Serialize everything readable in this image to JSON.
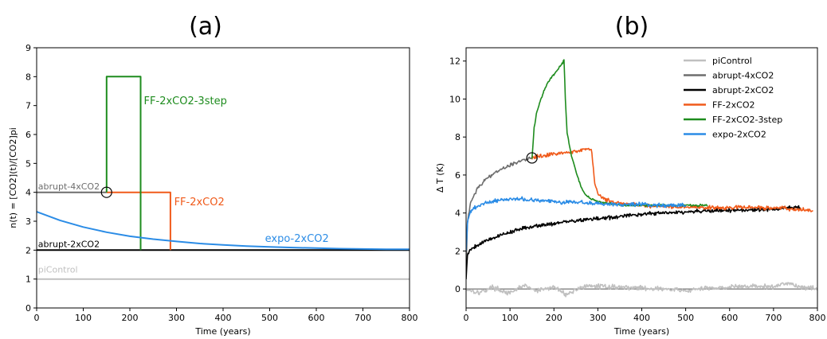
{
  "chart_data": [
    {
      "type": "line",
      "panel_label": "(a)",
      "xlabel": "Time (years)",
      "ylabel": "n(t) = [CO2](t)/[CO2]pi",
      "xlim": [
        0,
        800
      ],
      "ylim": [
        0,
        9
      ],
      "xticks": [
        "0",
        "100",
        "200",
        "300",
        "400",
        "500",
        "600",
        "700",
        "800"
      ],
      "yticks": [
        "0",
        "1",
        "2",
        "3",
        "4",
        "5",
        "6",
        "7",
        "8",
        "9"
      ],
      "grid": false,
      "legend": "none",
      "marker_circle": {
        "x": 150,
        "y": 4
      },
      "series": [
        {
          "name": "piControl",
          "color": "#c0c0c0",
          "label_pos": [
            3,
            1.22
          ],
          "x": [
            0,
            800
          ],
          "y": [
            1,
            1
          ]
        },
        {
          "name": "abrupt-4xCO2",
          "color": "#6e6e6e",
          "label_pos": [
            3,
            4.1
          ],
          "x": [
            0,
            150
          ],
          "y": [
            4,
            4
          ]
        },
        {
          "name": "abrupt-2xCO2",
          "color": "#000000",
          "label_pos": [
            3,
            2.1
          ],
          "x": [
            0,
            800
          ],
          "y": [
            2,
            2
          ]
        },
        {
          "name": "FF-2xCO2",
          "color": "#f05a1a",
          "label_pos": [
            295,
            3.55
          ],
          "x": [
            150,
            287,
            287
          ],
          "y": [
            4,
            4,
            2
          ]
        },
        {
          "name": "FF-2xCO2-3step",
          "color": "#1e8c1e",
          "label_pos": [
            230,
            7.05
          ],
          "x": [
            150,
            150,
            223,
            223
          ],
          "y": [
            4,
            8,
            8,
            2
          ]
        },
        {
          "name": "expo-2xCO2",
          "color": "#2b8ce6",
          "label_pos": [
            490,
            2.28
          ],
          "x": [
            0,
            50,
            100,
            150,
            200,
            250,
            300,
            350,
            400,
            450,
            500,
            550,
            600,
            650,
            700,
            750,
            800
          ],
          "y": [
            3.33,
            3.03,
            2.8,
            2.62,
            2.48,
            2.38,
            2.3,
            2.23,
            2.18,
            2.14,
            2.11,
            2.09,
            2.07,
            2.05,
            2.04,
            2.03,
            2.03
          ]
        }
      ]
    },
    {
      "type": "line",
      "panel_label": "(b)",
      "xlabel": "Time (years)",
      "ylabel": "Δ T (K)",
      "xlim": [
        0,
        800
      ],
      "ylim": [
        -1.0,
        12.7
      ],
      "xticks": [
        "0",
        "100",
        "200",
        "300",
        "400",
        "500",
        "600",
        "700",
        "800"
      ],
      "yticks": [
        "0",
        "2",
        "4",
        "6",
        "8",
        "10",
        "12"
      ],
      "grid": false,
      "legend": "top-right",
      "zero_line": true,
      "marker_circle": {
        "x": 150,
        "y": 6.9
      },
      "series": [
        {
          "name": "piControl",
          "color": "#c0c0c0",
          "x": [
            0,
            30,
            60,
            100,
            130,
            160,
            200,
            230,
            260,
            300,
            350,
            400,
            450,
            500,
            550,
            600,
            650,
            700,
            730,
            760,
            800
          ],
          "y": [
            0.0,
            -0.2,
            0.1,
            -0.25,
            0.2,
            -0.1,
            0.1,
            -0.3,
            0.1,
            0.15,
            0.1,
            0.05,
            0.0,
            -0.1,
            0.05,
            0.1,
            0.15,
            0.1,
            0.35,
            0.1,
            0.05
          ]
        },
        {
          "name": "abrupt-4xCO2",
          "color": "#6e6e6e",
          "x": [
            0,
            3,
            10,
            25,
            50,
            75,
            100,
            125,
            150
          ],
          "y": [
            0.8,
            3.5,
            4.5,
            5.3,
            5.9,
            6.25,
            6.5,
            6.75,
            6.9
          ]
        },
        {
          "name": "abrupt-2xCO2",
          "color": "#000000",
          "x": [
            0,
            3,
            10,
            25,
            50,
            100,
            150,
            200,
            250,
            300,
            350,
            400,
            450,
            500,
            550,
            600,
            650,
            700,
            750,
            760
          ],
          "y": [
            0.5,
            1.8,
            2.1,
            2.3,
            2.6,
            3.0,
            3.3,
            3.45,
            3.6,
            3.7,
            3.8,
            3.95,
            4.0,
            4.05,
            4.1,
            4.15,
            4.15,
            4.2,
            4.3,
            4.3
          ]
        },
        {
          "name": "FF-2xCO2",
          "color": "#f05a1a",
          "x": [
            150,
            170,
            200,
            230,
            260,
            285,
            288,
            293,
            300,
            310,
            330,
            360,
            400,
            450,
            500,
            550,
            600,
            650,
            700,
            750,
            790
          ],
          "y": [
            6.9,
            7.0,
            7.1,
            7.2,
            7.3,
            7.4,
            6.8,
            5.5,
            5.0,
            4.8,
            4.6,
            4.5,
            4.4,
            4.35,
            4.3,
            4.3,
            4.25,
            4.3,
            4.25,
            4.2,
            4.1
          ]
        },
        {
          "name": "FF-2xCO2-3step",
          "color": "#1e8c1e",
          "x": [
            150,
            152,
            155,
            160,
            170,
            180,
            190,
            200,
            210,
            220,
            223,
            226,
            230,
            240,
            250,
            260,
            270,
            280,
            300,
            330,
            360,
            400,
            450,
            500,
            550
          ],
          "y": [
            6.9,
            7.5,
            8.5,
            9.2,
            10.0,
            10.6,
            11.0,
            11.3,
            11.6,
            11.9,
            12.1,
            10.0,
            8.2,
            7.0,
            6.2,
            5.5,
            5.0,
            4.8,
            4.6,
            4.5,
            4.4,
            4.4,
            4.4,
            4.4,
            4.4
          ]
        },
        {
          "name": "expo-2xCO2",
          "color": "#2b8ce6",
          "x": [
            0,
            3,
            10,
            20,
            40,
            60,
            80,
            100,
            150,
            200,
            250,
            300,
            350,
            400,
            450,
            500
          ],
          "y": [
            2.0,
            3.5,
            4.1,
            4.3,
            4.5,
            4.6,
            4.7,
            4.75,
            4.7,
            4.6,
            4.55,
            4.5,
            4.45,
            4.45,
            4.4,
            4.4
          ]
        }
      ]
    }
  ]
}
